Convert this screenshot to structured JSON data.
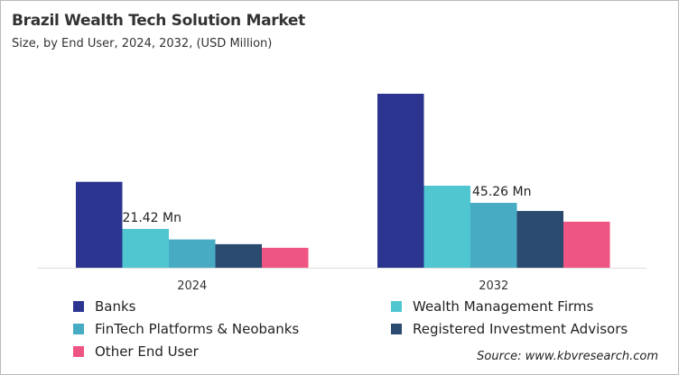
{
  "chart_data": {
    "type": "bar",
    "title": "Brazil Wealth Tech Solution Market",
    "subtitle": "Size, by End User, 2024, 2032, (USD Million)",
    "categories": [
      "2024",
      "2032"
    ],
    "series": [
      {
        "name": "Banks",
        "color": "#2b3590",
        "values": [
          47.4,
          96.0
        ]
      },
      {
        "name": "Wealth Management Firms",
        "color": "#4fc6d0",
        "values": [
          21.42,
          45.26
        ]
      },
      {
        "name": "FinTech Platforms & Neobanks",
        "color": "#47abc4",
        "values": [
          15.6,
          35.8
        ]
      },
      {
        "name": "Registered Investment Advisors",
        "color": "#2b4a70",
        "values": [
          13.0,
          31.3
        ]
      },
      {
        "name": "Other End User",
        "color": "#ef5583",
        "values": [
          11.0,
          25.4
        ]
      }
    ],
    "annotations": [
      {
        "category": "2024",
        "series": "Wealth Management Firms",
        "text": "21.42 Mn"
      },
      {
        "category": "2032",
        "series": "Wealth Management Firms",
        "text": "45.26 Mn"
      }
    ],
    "ylim": [
      0,
      100
    ],
    "grid": false,
    "legend_placement": "bottom",
    "source": "Source: www.kbvresearch.com"
  }
}
